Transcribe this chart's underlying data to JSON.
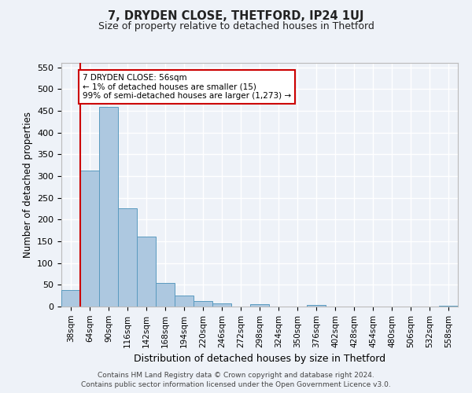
{
  "title": "7, DRYDEN CLOSE, THETFORD, IP24 1UJ",
  "subtitle": "Size of property relative to detached houses in Thetford",
  "xlabel": "Distribution of detached houses by size in Thetford",
  "ylabel": "Number of detached properties",
  "bar_color": "#adc8e0",
  "bar_edge_color": "#5a9abf",
  "highlight_color": "#cc0000",
  "categories": [
    "38sqm",
    "64sqm",
    "90sqm",
    "116sqm",
    "142sqm",
    "168sqm",
    "194sqm",
    "220sqm",
    "246sqm",
    "272sqm",
    "298sqm",
    "324sqm",
    "350sqm",
    "376sqm",
    "402sqm",
    "428sqm",
    "454sqm",
    "480sqm",
    "506sqm",
    "532sqm",
    "558sqm"
  ],
  "values": [
    38,
    313,
    458,
    225,
    160,
    55,
    25,
    12,
    8,
    0,
    5,
    0,
    0,
    3,
    0,
    0,
    0,
    0,
    0,
    0,
    2
  ],
  "annotation_text": "7 DRYDEN CLOSE: 56sqm\n← 1% of detached houses are smaller (15)\n99% of semi-detached houses are larger (1,273) →",
  "annotation_box_color": "#ffffff",
  "annotation_box_edge_color": "#cc0000",
  "vline_x": 0.5,
  "ylim": [
    0,
    560
  ],
  "yticks": [
    0,
    50,
    100,
    150,
    200,
    250,
    300,
    350,
    400,
    450,
    500,
    550
  ],
  "background_color": "#eef2f8",
  "grid_color": "#ffffff",
  "footer_line1": "Contains HM Land Registry data © Crown copyright and database right 2024.",
  "footer_line2": "Contains public sector information licensed under the Open Government Licence v3.0."
}
